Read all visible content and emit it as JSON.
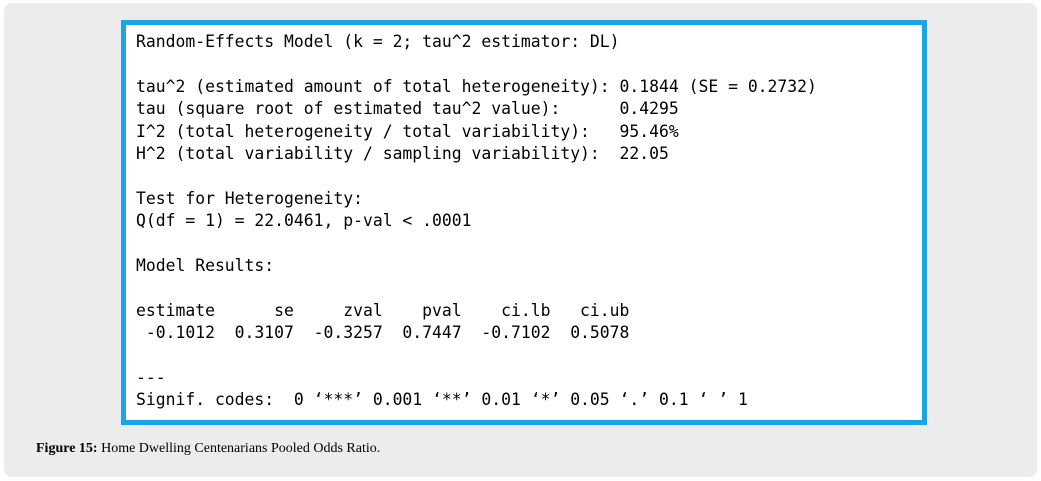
{
  "output": {
    "lines": [
      "Random-Effects Model (k = 2; tau^2 estimator: DL)",
      "",
      "tau^2 (estimated amount of total heterogeneity): 0.1844 (SE = 0.2732)",
      "tau (square root of estimated tau^2 value):      0.4295",
      "I^2 (total heterogeneity / total variability):   95.46%",
      "H^2 (total variability / sampling variability):  22.05",
      "",
      "Test for Heterogeneity:",
      "Q(df = 1) = 22.0461, p-val < .0001",
      "",
      "Model Results:",
      "",
      "estimate      se     zval    pval    ci.lb   ci.ub",
      " -0.1012  0.3107  -0.3257  0.7447  -0.7102  0.5078",
      "",
      "---",
      "Signif. codes:  0 ‘***’ 0.001 ‘**’ 0.01 ‘*’ 0.05 ‘.’ 0.1 ‘ ’ 1"
    ]
  },
  "caption": {
    "label": "Figure 15:",
    "text": " Home Dwelling Centenarians Pooled Odds Ratio."
  },
  "colors": {
    "frame_border": "#1aa6e6",
    "panel_background": "#ececec"
  }
}
